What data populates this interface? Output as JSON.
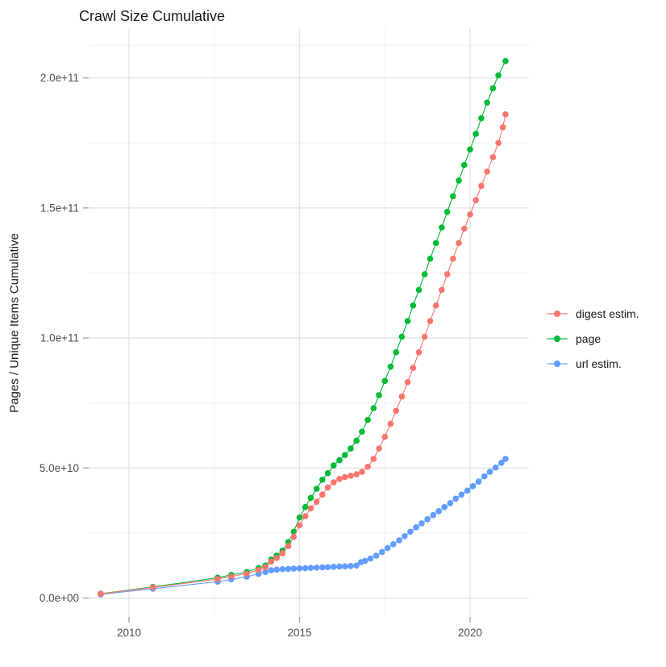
{
  "title": "Crawl Size Cumulative",
  "y_axis": {
    "label": "Pages / Unique Items Cumulative",
    "ticks": [
      "0.0e+00",
      "5.0e+10",
      "1.0e+11",
      "1.5e+11",
      "2.0e+11"
    ],
    "tick_values": [
      0,
      50000000000.0,
      100000000000.0,
      150000000000.0,
      200000000000.0
    ],
    "minor_values": [
      25000000000.0,
      75000000000.0,
      125000000000.0,
      175000000000.0,
      212500000000.0
    ]
  },
  "x_axis": {
    "ticks": [
      "2010",
      "2015",
      "2020"
    ],
    "tick_values": [
      2010,
      2015,
      2020
    ],
    "minor_values": [
      2012.5,
      2017.5
    ]
  },
  "legend": {
    "items": [
      {
        "label": "digest estim.",
        "color": "#F8766D"
      },
      {
        "label": "page",
        "color": "#00BA38"
      },
      {
        "label": "url estim.",
        "color": "#619CFF"
      }
    ]
  },
  "style": {
    "grid_major_color": "#E4E4E4",
    "grid_minor_color": "#F0F0F0",
    "tick_color": "#A8A8A8",
    "tick_label_color": "#4D4D4D",
    "background": "#FFFFFF"
  },
  "chart_data": {
    "type": "line",
    "title": "Crawl Size Cumulative",
    "xlabel": "",
    "ylabel": "Pages / Unique Items Cumulative",
    "xlim": [
      2008.8,
      2021.7
    ],
    "ylim": [
      -7000000000.0,
      219000000000.0
    ],
    "grid": "on",
    "legend_position": "right",
    "marker": "point",
    "series": [
      {
        "name": "digest estim.",
        "color": "#F8766D",
        "points": [
          [
            2009.17,
            1600000000.0
          ],
          [
            2010.7,
            4100000000.0
          ],
          [
            2012.6,
            7300000000.0
          ],
          [
            2013.0,
            8300000000.0
          ],
          [
            2013.45,
            9400000000.0
          ],
          [
            2013.8,
            10800000000.0
          ],
          [
            2014.0,
            11900000000.0
          ],
          [
            2014.17,
            14000000000.0
          ],
          [
            2014.33,
            15400000000.0
          ],
          [
            2014.5,
            17200000000.0
          ],
          [
            2014.67,
            20000000000.0
          ],
          [
            2014.83,
            23500000000.0
          ],
          [
            2015.0,
            28000000000.0
          ],
          [
            2015.17,
            31500000000.0
          ],
          [
            2015.33,
            34500000000.0
          ],
          [
            2015.5,
            37000000000.0
          ],
          [
            2015.67,
            39800000000.0
          ],
          [
            2015.83,
            42500000000.0
          ],
          [
            2016.0,
            44500000000.0
          ],
          [
            2016.17,
            45800000000.0
          ],
          [
            2016.33,
            46500000000.0
          ],
          [
            2016.5,
            47000000000.0
          ],
          [
            2016.67,
            47600000000.0
          ],
          [
            2016.83,
            48500000000.0
          ],
          [
            2017.0,
            50500000000.0
          ],
          [
            2017.17,
            53500000000.0
          ],
          [
            2017.33,
            57500000000.0
          ],
          [
            2017.5,
            62000000000.0
          ],
          [
            2017.67,
            67000000000.0
          ],
          [
            2017.83,
            72000000000.0
          ],
          [
            2018.0,
            77500000000.0
          ],
          [
            2018.17,
            83000000000.0
          ],
          [
            2018.33,
            88500000000.0
          ],
          [
            2018.5,
            94500000000.0
          ],
          [
            2018.67,
            100500000000.0
          ],
          [
            2018.83,
            106500000000.0
          ],
          [
            2019.0,
            112500000000.0
          ],
          [
            2019.17,
            118500000000.0
          ],
          [
            2019.33,
            124500000000.0
          ],
          [
            2019.5,
            130500000000.0
          ],
          [
            2019.67,
            136500000000.0
          ],
          [
            2019.83,
            142000000000.0
          ],
          [
            2020.0,
            147500000000.0
          ],
          [
            2020.17,
            153000000000.0
          ],
          [
            2020.33,
            158500000000.0
          ],
          [
            2020.5,
            164000000000.0
          ],
          [
            2020.67,
            169500000000.0
          ],
          [
            2020.83,
            175000000000.0
          ],
          [
            2020.96,
            181000000000.0
          ],
          [
            2021.04,
            186000000000.0
          ]
        ]
      },
      {
        "name": "page",
        "color": "#00BA38",
        "points": [
          [
            2009.17,
            1700000000.0
          ],
          [
            2010.7,
            4300000000.0
          ],
          [
            2012.6,
            7800000000.0
          ],
          [
            2013.0,
            8900000000.0
          ],
          [
            2013.45,
            10000000000.0
          ],
          [
            2013.8,
            11500000000.0
          ],
          [
            2014.0,
            12500000000.0
          ],
          [
            2014.17,
            14800000000.0
          ],
          [
            2014.33,
            16300000000.0
          ],
          [
            2014.5,
            18200000000.0
          ],
          [
            2014.67,
            21500000000.0
          ],
          [
            2014.83,
            25500000000.0
          ],
          [
            2015.0,
            31000000000.0
          ],
          [
            2015.17,
            35000000000.0
          ],
          [
            2015.33,
            38500000000.0
          ],
          [
            2015.5,
            42000000000.0
          ],
          [
            2015.67,
            45500000000.0
          ],
          [
            2015.83,
            48000000000.0
          ],
          [
            2016.0,
            51000000000.0
          ],
          [
            2016.17,
            53000000000.0
          ],
          [
            2016.33,
            55000000000.0
          ],
          [
            2016.5,
            57500000000.0
          ],
          [
            2016.67,
            60500000000.0
          ],
          [
            2016.83,
            64000000000.0
          ],
          [
            2017.0,
            68500000000.0
          ],
          [
            2017.17,
            73000000000.0
          ],
          [
            2017.33,
            78000000000.0
          ],
          [
            2017.5,
            83500000000.0
          ],
          [
            2017.67,
            89000000000.0
          ],
          [
            2017.83,
            94500000000.0
          ],
          [
            2018.0,
            100500000000.0
          ],
          [
            2018.17,
            106500000000.0
          ],
          [
            2018.33,
            112500000000.0
          ],
          [
            2018.5,
            118500000000.0
          ],
          [
            2018.67,
            124500000000.0
          ],
          [
            2018.83,
            130500000000.0
          ],
          [
            2019.0,
            136500000000.0
          ],
          [
            2019.17,
            142500000000.0
          ],
          [
            2019.33,
            148500000000.0
          ],
          [
            2019.5,
            154500000000.0
          ],
          [
            2019.67,
            160500000000.0
          ],
          [
            2019.83,
            166500000000.0
          ],
          [
            2020.0,
            172500000000.0
          ],
          [
            2020.17,
            178500000000.0
          ],
          [
            2020.33,
            184500000000.0
          ],
          [
            2020.5,
            190500000000.0
          ],
          [
            2020.67,
            196000000000.0
          ],
          [
            2020.83,
            201000000000.0
          ],
          [
            2021.04,
            206500000000.0
          ]
        ]
      },
      {
        "name": "url estim.",
        "color": "#619CFF",
        "points": [
          [
            2009.17,
            1400000000.0
          ],
          [
            2010.7,
            3600000000.0
          ],
          [
            2012.6,
            6300000000.0
          ],
          [
            2013.0,
            7200000000.0
          ],
          [
            2013.45,
            8200000000.0
          ],
          [
            2013.8,
            9300000000.0
          ],
          [
            2014.0,
            10000000000.0
          ],
          [
            2014.17,
            10700000000.0
          ],
          [
            2014.33,
            10900000000.0
          ],
          [
            2014.5,
            11100000000.0
          ],
          [
            2014.67,
            11200000000.0
          ],
          [
            2014.83,
            11300000000.0
          ],
          [
            2015.0,
            11400000000.0
          ],
          [
            2015.17,
            11500000000.0
          ],
          [
            2015.33,
            11600000000.0
          ],
          [
            2015.5,
            11700000000.0
          ],
          [
            2015.67,
            11800000000.0
          ],
          [
            2015.83,
            11900000000.0
          ],
          [
            2016.0,
            12000000000.0
          ],
          [
            2016.17,
            12100000000.0
          ],
          [
            2016.33,
            12200000000.0
          ],
          [
            2016.5,
            12300000000.0
          ],
          [
            2016.67,
            12500000000.0
          ],
          [
            2016.8,
            13800000000.0
          ],
          [
            2016.92,
            14300000000.0
          ],
          [
            2017.08,
            15200000000.0
          ],
          [
            2017.25,
            16300000000.0
          ],
          [
            2017.42,
            17700000000.0
          ],
          [
            2017.58,
            19200000000.0
          ],
          [
            2017.75,
            20700000000.0
          ],
          [
            2017.92,
            22200000000.0
          ],
          [
            2018.08,
            23800000000.0
          ],
          [
            2018.25,
            25500000000.0
          ],
          [
            2018.42,
            27200000000.0
          ],
          [
            2018.58,
            28700000000.0
          ],
          [
            2018.75,
            30300000000.0
          ],
          [
            2018.92,
            31900000000.0
          ],
          [
            2019.08,
            33400000000.0
          ],
          [
            2019.25,
            35000000000.0
          ],
          [
            2019.42,
            36500000000.0
          ],
          [
            2019.58,
            38200000000.0
          ],
          [
            2019.75,
            39800000000.0
          ],
          [
            2019.92,
            41300000000.0
          ],
          [
            2020.08,
            43000000000.0
          ],
          [
            2020.25,
            44800000000.0
          ],
          [
            2020.42,
            46800000000.0
          ],
          [
            2020.58,
            48500000000.0
          ],
          [
            2020.75,
            50200000000.0
          ],
          [
            2020.92,
            52000000000.0
          ],
          [
            2021.04,
            53500000000.0
          ]
        ]
      }
    ]
  }
}
